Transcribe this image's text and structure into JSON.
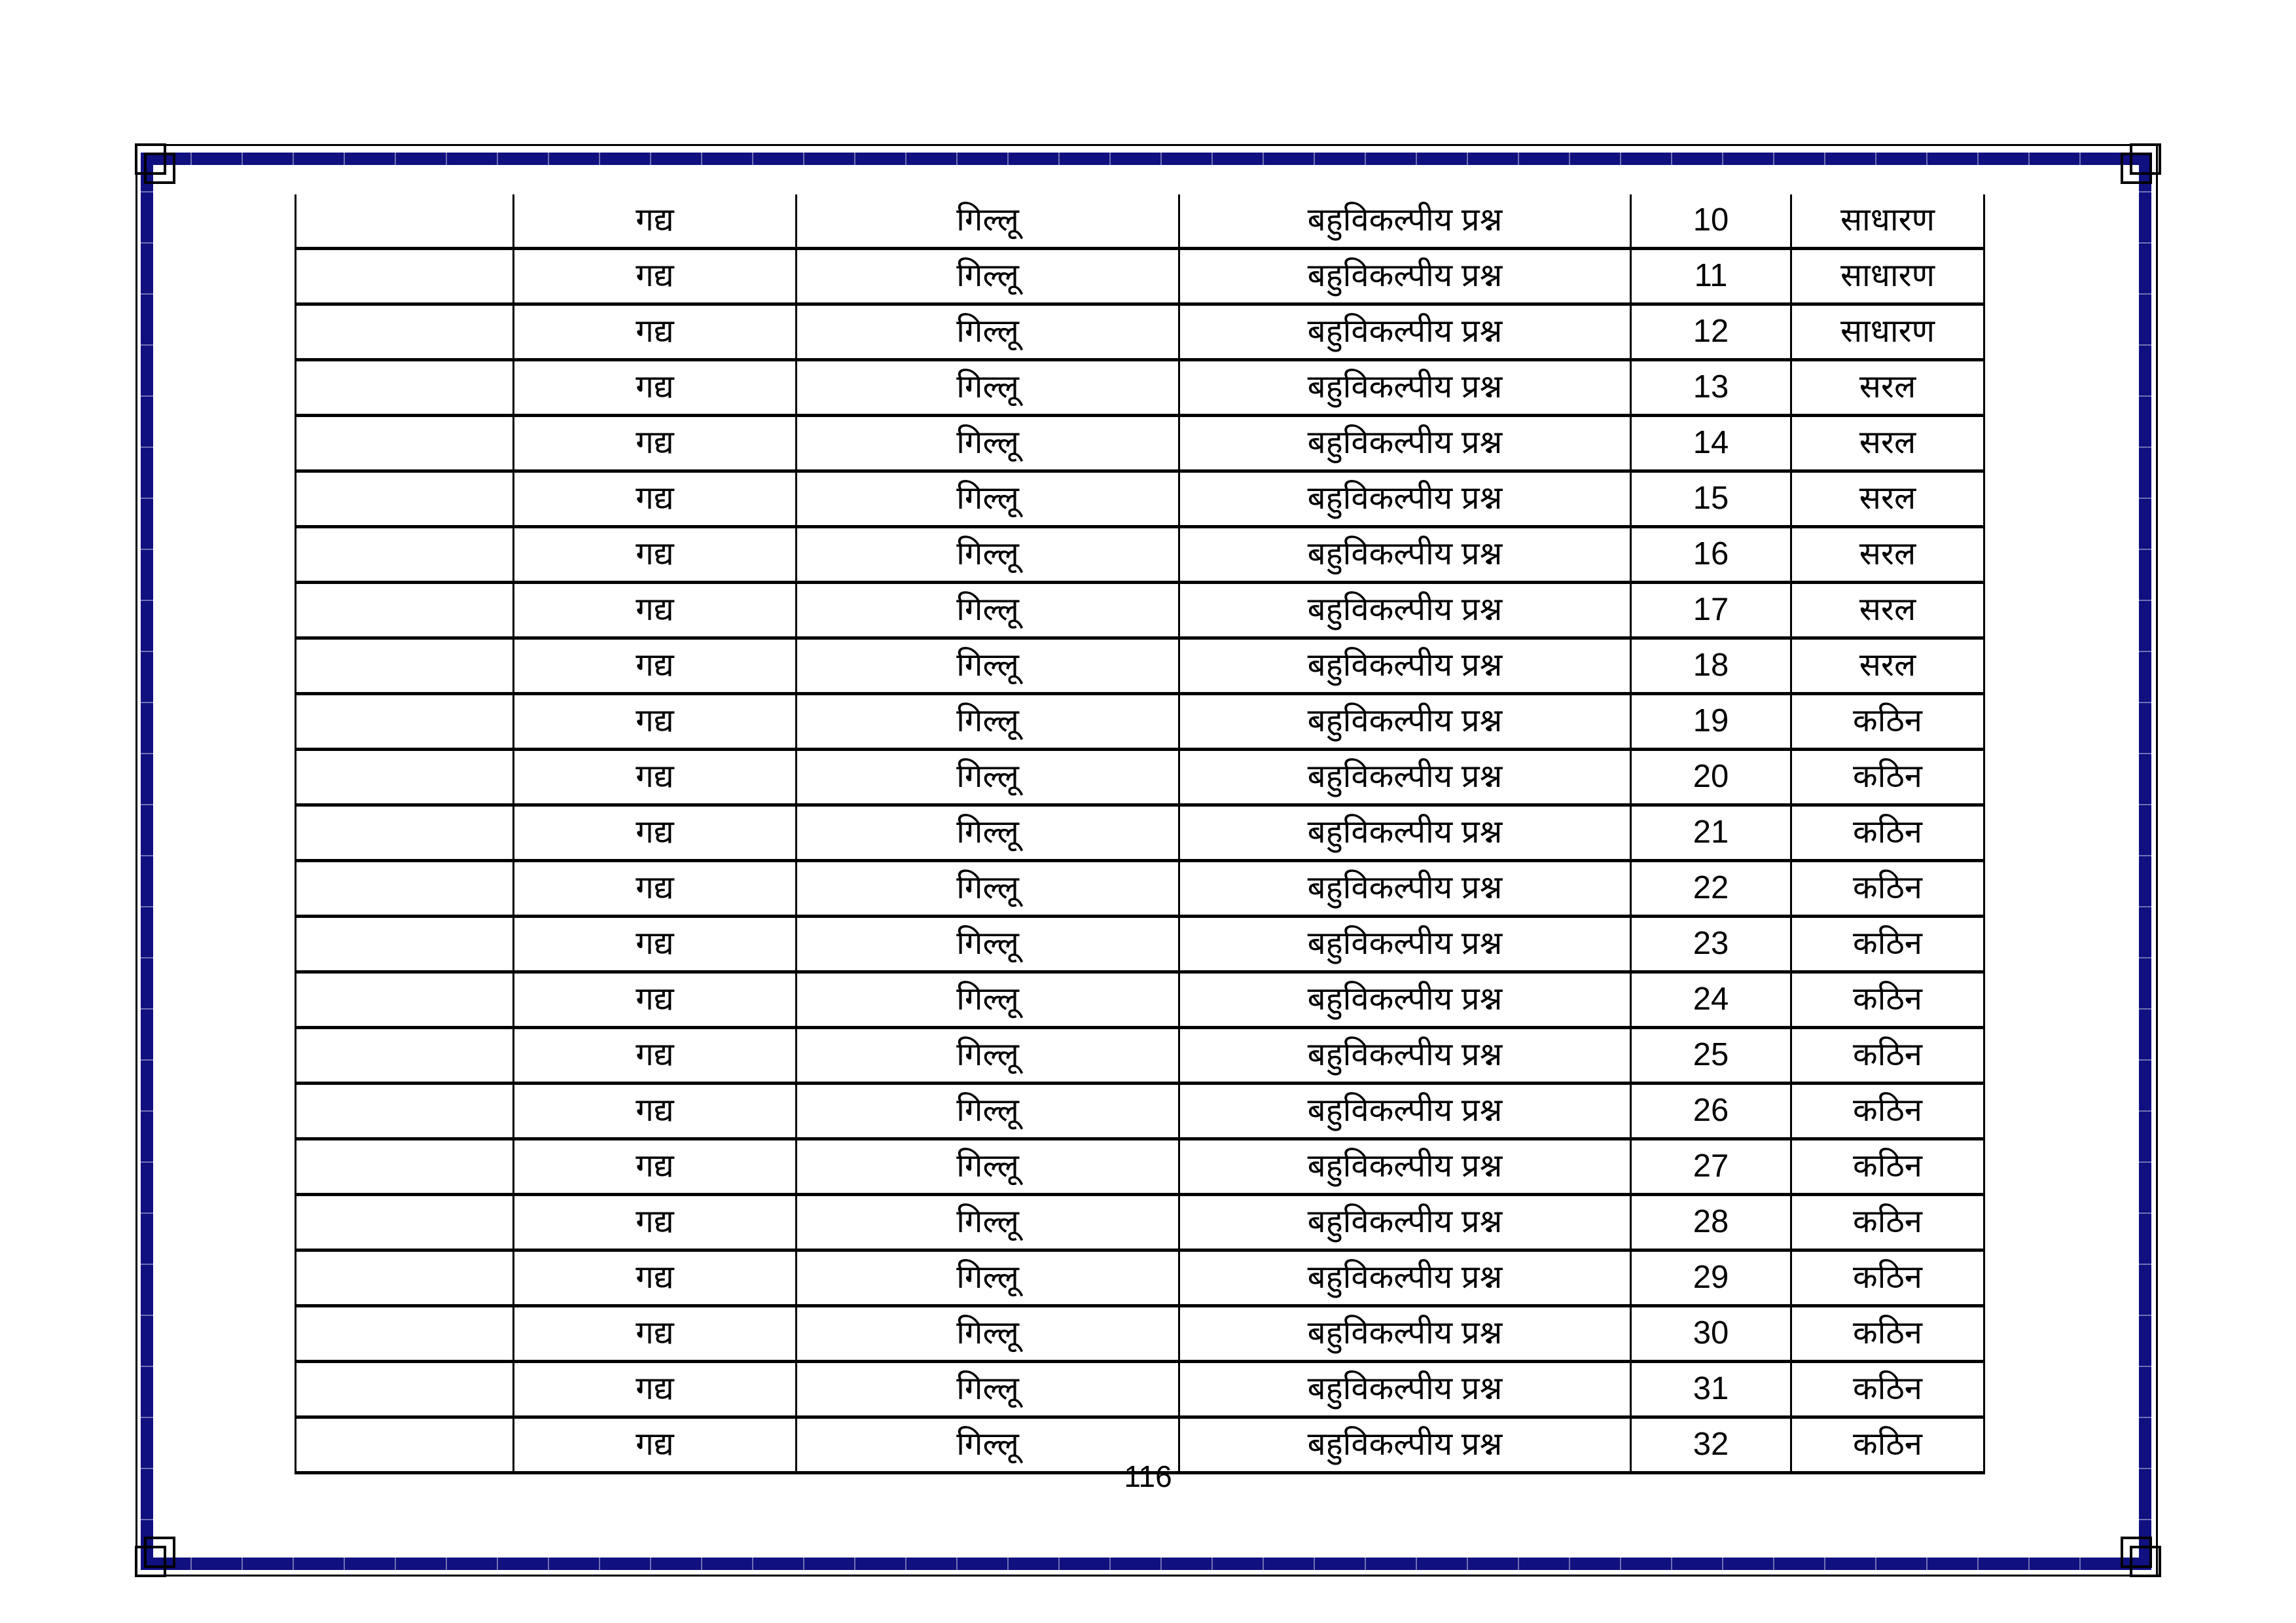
{
  "page": {
    "number_label": "116"
  },
  "colors": {
    "frame_blue": "#101080",
    "frame_black": "#000000"
  },
  "table": {
    "rows": [
      {
        "blank": "",
        "subject": "गद्य",
        "lesson": "गिल्लू",
        "question_type": "बहुविकल्पीय प्रश्न",
        "number": "10",
        "difficulty": "साधारण"
      },
      {
        "blank": "",
        "subject": "गद्य",
        "lesson": "गिल्लू",
        "question_type": "बहुविकल्पीय प्रश्न",
        "number": "11",
        "difficulty": "साधारण"
      },
      {
        "blank": "",
        "subject": "गद्य",
        "lesson": "गिल्लू",
        "question_type": "बहुविकल्पीय प्रश्न",
        "number": "12",
        "difficulty": "साधारण"
      },
      {
        "blank": "",
        "subject": "गद्य",
        "lesson": "गिल्लू",
        "question_type": "बहुविकल्पीय प्रश्न",
        "number": "13",
        "difficulty": "सरल"
      },
      {
        "blank": "",
        "subject": "गद्य",
        "lesson": "गिल्लू",
        "question_type": "बहुविकल्पीय प्रश्न",
        "number": "14",
        "difficulty": "सरल"
      },
      {
        "blank": "",
        "subject": "गद्य",
        "lesson": "गिल्लू",
        "question_type": "बहुविकल्पीय प्रश्न",
        "number": "15",
        "difficulty": "सरल"
      },
      {
        "blank": "",
        "subject": "गद्य",
        "lesson": "गिल्लू",
        "question_type": "बहुविकल्पीय प्रश्न",
        "number": "16",
        "difficulty": "सरल"
      },
      {
        "blank": "",
        "subject": "गद्य",
        "lesson": "गिल्लू",
        "question_type": "बहुविकल्पीय प्रश्न",
        "number": "17",
        "difficulty": "सरल"
      },
      {
        "blank": "",
        "subject": "गद्य",
        "lesson": "गिल्लू",
        "question_type": "बहुविकल्पीय प्रश्न",
        "number": "18",
        "difficulty": "सरल"
      },
      {
        "blank": "",
        "subject": "गद्य",
        "lesson": "गिल्लू",
        "question_type": "बहुविकल्पीय प्रश्न",
        "number": "19",
        "difficulty": "कठिन"
      },
      {
        "blank": "",
        "subject": "गद्य",
        "lesson": "गिल्लू",
        "question_type": "बहुविकल्पीय प्रश्न",
        "number": "20",
        "difficulty": "कठिन"
      },
      {
        "blank": "",
        "subject": "गद्य",
        "lesson": "गिल्लू",
        "question_type": "बहुविकल्पीय प्रश्न",
        "number": "21",
        "difficulty": "कठिन"
      },
      {
        "blank": "",
        "subject": "गद्य",
        "lesson": "गिल्लू",
        "question_type": "बहुविकल्पीय प्रश्न",
        "number": "22",
        "difficulty": "कठिन"
      },
      {
        "blank": "",
        "subject": "गद्य",
        "lesson": "गिल्लू",
        "question_type": "बहुविकल्पीय प्रश्न",
        "number": "23",
        "difficulty": "कठिन"
      },
      {
        "blank": "",
        "subject": "गद्य",
        "lesson": "गिल्लू",
        "question_type": "बहुविकल्पीय प्रश्न",
        "number": "24",
        "difficulty": "कठिन"
      },
      {
        "blank": "",
        "subject": "गद्य",
        "lesson": "गिल्लू",
        "question_type": "बहुविकल्पीय प्रश्न",
        "number": "25",
        "difficulty": "कठिन"
      },
      {
        "blank": "",
        "subject": "गद्य",
        "lesson": "गिल्लू",
        "question_type": "बहुविकल्पीय प्रश्न",
        "number": "26",
        "difficulty": "कठिन"
      },
      {
        "blank": "",
        "subject": "गद्य",
        "lesson": "गिल्लू",
        "question_type": "बहुविकल्पीय प्रश्न",
        "number": "27",
        "difficulty": "कठिन"
      },
      {
        "blank": "",
        "subject": "गद्य",
        "lesson": "गिल्लू",
        "question_type": "बहुविकल्पीय प्रश्न",
        "number": "28",
        "difficulty": "कठिन"
      },
      {
        "blank": "",
        "subject": "गद्य",
        "lesson": "गिल्लू",
        "question_type": "बहुविकल्पीय प्रश्न",
        "number": "29",
        "difficulty": "कठिन"
      },
      {
        "blank": "",
        "subject": "गद्य",
        "lesson": "गिल्लू",
        "question_type": "बहुविकल्पीय प्रश्न",
        "number": "30",
        "difficulty": "कठिन"
      },
      {
        "blank": "",
        "subject": "गद्य",
        "lesson": "गिल्लू",
        "question_type": "बहुविकल्पीय प्रश्न",
        "number": "31",
        "difficulty": "कठिन"
      },
      {
        "blank": "",
        "subject": "गद्य",
        "lesson": "गिल्लू",
        "question_type": "बहुविकल्पीय प्रश्न",
        "number": "32",
        "difficulty": "कठिन"
      }
    ]
  }
}
